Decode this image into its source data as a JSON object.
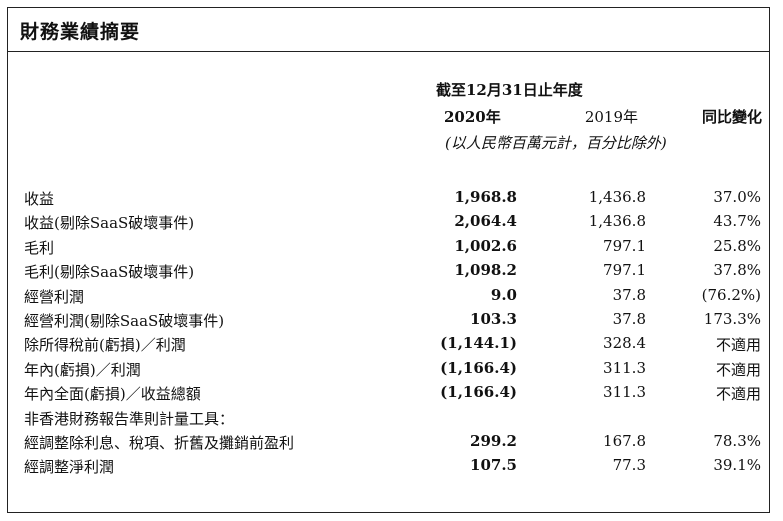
{
  "title": "財務業績摘要",
  "header": {
    "period": "截至12月31日止年度",
    "col_2020": "2020年",
    "col_2019": "2019年",
    "col_yoy": "同比變化",
    "unit_note": "(以人民幣百萬元計，百分比除外)"
  },
  "rows": [
    {
      "label": "收益",
      "v2020": "1,968.8",
      "v2019": "1,436.8",
      "yoy": "37.0%"
    },
    {
      "label": "收益(剔除SaaS破壞事件)",
      "v2020": "2,064.4",
      "v2019": "1,436.8",
      "yoy": "43.7%"
    },
    {
      "label": "毛利",
      "v2020": "1,002.6",
      "v2019": "797.1",
      "yoy": "25.8%"
    },
    {
      "label": "毛利(剔除SaaS破壞事件)",
      "v2020": "1,098.2",
      "v2019": "797.1",
      "yoy": "37.8%"
    },
    {
      "label": "經營利潤",
      "v2020": "9.0",
      "v2019": "37.8",
      "yoy": "(76.2%)"
    },
    {
      "label": "經營利潤(剔除SaaS破壞事件)",
      "v2020": "103.3",
      "v2019": "37.8",
      "yoy": "173.3%"
    },
    {
      "label": "除所得稅前(虧損)／利潤",
      "v2020": "(1,144.1)",
      "v2019": "328.4",
      "yoy": "不適用"
    },
    {
      "label": "年內(虧損)／利潤",
      "v2020": "(1,166.4)",
      "v2019": "311.3",
      "yoy": "不適用"
    },
    {
      "label": "年內全面(虧損)／收益總額",
      "v2020": "(1,166.4)",
      "v2019": "311.3",
      "yoy": "不適用"
    },
    {
      "label": "非香港財務報告準則計量工具：",
      "v2020": "",
      "v2019": "",
      "yoy": ""
    },
    {
      "label": "經調整除利息、稅項、折舊及攤銷前盈利",
      "v2020": "299.2",
      "v2019": "167.8",
      "yoy": "78.3%"
    },
    {
      "label": "經調整淨利潤",
      "v2020": "107.5",
      "v2019": "77.3",
      "yoy": "39.1%"
    }
  ]
}
